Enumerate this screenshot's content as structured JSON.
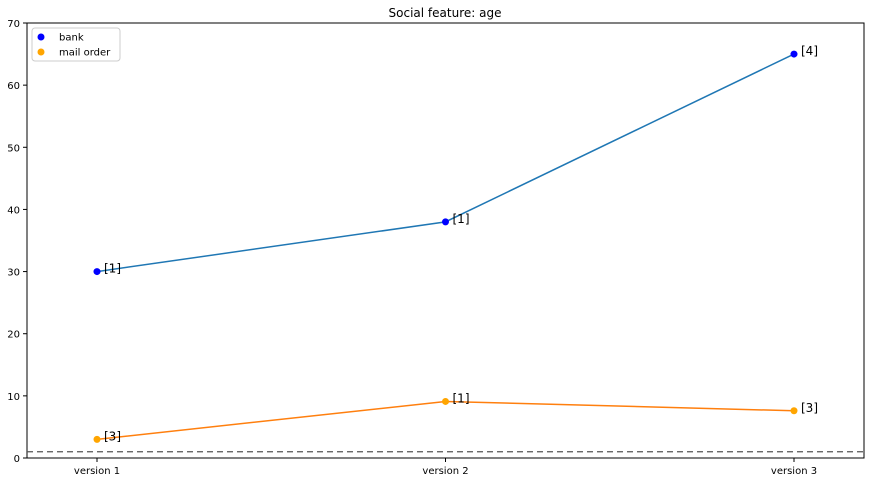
{
  "chart_data": {
    "type": "line",
    "title": "Social feature: age",
    "xlabel": "",
    "ylabel": "",
    "categories": [
      "version 1",
      "version 2",
      "version 3"
    ],
    "ylim": [
      0,
      70
    ],
    "yticks": [
      0,
      10,
      20,
      30,
      40,
      50,
      60,
      70
    ],
    "grid": false,
    "legend_position": "top-left",
    "reference_line": {
      "y": 1,
      "style": "dashed",
      "color": "#555555"
    },
    "series": [
      {
        "name": "bank",
        "line_color": "#1f77b4",
        "marker_color": "#0000ff",
        "values": [
          30,
          38,
          65
        ],
        "point_labels": [
          "[1]",
          "[1]",
          "[4]"
        ]
      },
      {
        "name": "mail order",
        "line_color": "#ff7f0e",
        "marker_color": "#ffa500",
        "values": [
          3,
          9.1,
          7.6
        ],
        "point_labels": [
          "[3]",
          "[1]",
          "[3]"
        ]
      }
    ]
  }
}
